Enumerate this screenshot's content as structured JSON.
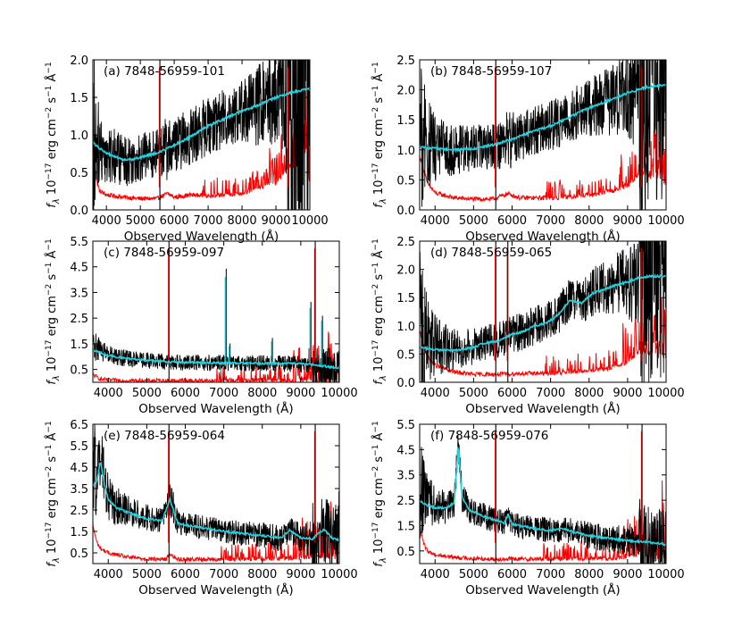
{
  "figure": {
    "legend": {
      "observed": "black",
      "model": "cyan",
      "error": "red"
    },
    "colors": {
      "observed": "#000000",
      "model": "#22d3df",
      "error": "#ff0000",
      "sky_line": "#000000"
    }
  },
  "chart_data": [
    {
      "type": "line",
      "panel": "a",
      "title": "(a) 7848-56959-101",
      "xlabel": "Observed Wavelength (Å)",
      "ylabel": "f_λ 10^-17 erg cm^-2 s^-1 Å^-1",
      "xlim": [
        3600,
        10000
      ],
      "ylim": [
        0.0,
        2.0
      ],
      "x_ticks": [
        4000,
        5000,
        6000,
        7000,
        8000,
        9000,
        10000
      ],
      "x_tick_labels": [
        "4000",
        "5000",
        "6000",
        "7000",
        "8000",
        "9000",
        "10000"
      ],
      "y_ticks": [
        0.0,
        0.5,
        1.0,
        1.5,
        2.0
      ],
      "y_tick_labels": [
        "0.0",
        "0.5",
        "1.0",
        "1.5",
        "2.0"
      ],
      "vlines": [
        5577,
        9375
      ],
      "series": [
        {
          "name": "model",
          "x": [
            3600,
            3800,
            4000,
            4300,
            4600,
            5000,
            5500,
            6000,
            6500,
            7000,
            7500,
            8000,
            8500,
            9000,
            9500,
            10000
          ],
          "values": [
            0.9,
            0.82,
            0.76,
            0.7,
            0.66,
            0.7,
            0.76,
            0.86,
            0.98,
            1.12,
            1.22,
            1.32,
            1.4,
            1.5,
            1.57,
            1.62
          ]
        },
        {
          "name": "error",
          "x": [
            3600,
            3700,
            3800,
            4000,
            4500,
            5000,
            5500,
            5800,
            6000,
            6500,
            7000,
            7500,
            8000,
            8500,
            9000,
            9300,
            9600,
            9900,
            10000
          ],
          "values": [
            0.9,
            0.4,
            0.25,
            0.2,
            0.17,
            0.15,
            0.15,
            0.22,
            0.17,
            0.2,
            0.19,
            0.2,
            0.22,
            0.3,
            0.35,
            0.55,
            0.6,
            0.8,
            0.3
          ]
        },
        {
          "name": "observed",
          "x": [
            3600,
            3800,
            4000,
            4300,
            4600,
            5000,
            5500,
            6000,
            6500,
            7000,
            7500,
            8000,
            8500,
            9000,
            9500,
            10000
          ],
          "values": [
            1.0,
            0.85,
            0.76,
            0.7,
            0.66,
            0.7,
            0.76,
            0.86,
            0.98,
            1.12,
            1.22,
            1.32,
            1.4,
            1.5,
            1.57,
            1.62
          ]
        }
      ]
    },
    {
      "type": "line",
      "panel": "b",
      "title": "(b) 7848-56959-107",
      "xlabel": "Observed Wavelength (Å)",
      "ylabel": "f_λ 10^-17 erg cm^-2 s^-1 Å^-1",
      "xlim": [
        3600,
        10000
      ],
      "ylim": [
        0.0,
        2.5
      ],
      "x_ticks": [
        4000,
        5000,
        6000,
        7000,
        8000,
        9000,
        10000
      ],
      "x_tick_labels": [
        "4000",
        "5000",
        "6000",
        "7000",
        "8000",
        "9000",
        "10000"
      ],
      "y_ticks": [
        0.0,
        0.5,
        1.0,
        1.5,
        2.0,
        2.5
      ],
      "y_tick_labels": [
        "0.0",
        "0.5",
        "1.0",
        "1.5",
        "2.0",
        "2.5"
      ],
      "vlines": [
        5577,
        9375
      ],
      "series": [
        {
          "name": "model",
          "x": [
            3600,
            4000,
            4500,
            5000,
            5500,
            6000,
            6500,
            7000,
            7500,
            8000,
            8500,
            9000,
            9500,
            10000
          ],
          "values": [
            1.05,
            1.02,
            1.0,
            1.02,
            1.08,
            1.18,
            1.3,
            1.4,
            1.55,
            1.7,
            1.82,
            1.95,
            2.05,
            2.08
          ]
        },
        {
          "name": "error",
          "x": [
            3600,
            3800,
            4000,
            4500,
            5000,
            5500,
            5900,
            6200,
            7000,
            7500,
            8000,
            8500,
            9000,
            9300,
            9600,
            10000
          ],
          "values": [
            0.9,
            0.45,
            0.28,
            0.2,
            0.18,
            0.18,
            0.27,
            0.2,
            0.2,
            0.22,
            0.25,
            0.3,
            0.4,
            0.6,
            0.55,
            0.45
          ]
        },
        {
          "name": "observed",
          "x": [
            3600,
            4000,
            4500,
            5000,
            5500,
            6000,
            6500,
            7000,
            7500,
            8000,
            8500,
            9000,
            9500,
            10000
          ],
          "values": [
            1.1,
            1.02,
            1.0,
            1.02,
            1.08,
            1.18,
            1.3,
            1.4,
            1.55,
            1.7,
            1.82,
            1.95,
            2.05,
            2.08
          ]
        }
      ]
    },
    {
      "type": "line",
      "panel": "c",
      "title": "(c) 7848-56959-097",
      "xlabel": "Observed Wavelength (Å)",
      "ylabel": "f_λ 10^-17 erg cm^-2 s^-1 Å^-1",
      "xlim": [
        3600,
        10000
      ],
      "ylim": [
        0.0,
        5.5
      ],
      "x_ticks": [
        4000,
        5000,
        6000,
        7000,
        8000,
        9000,
        10000
      ],
      "x_tick_labels": [
        "4000",
        "5000",
        "6000",
        "7000",
        "8000",
        "9000",
        "10000"
      ],
      "y_ticks": [
        0.5,
        1.5,
        2.5,
        3.5,
        4.5,
        5.5
      ],
      "y_tick_labels": [
        "0.5",
        "1.5",
        "2.5",
        "3.5",
        "4.5",
        "5.5"
      ],
      "vlines": [
        5577,
        9375
      ],
      "series": [
        {
          "name": "model",
          "x": [
            3600,
            4000,
            4500,
            5000,
            5500,
            6000,
            6500,
            7000,
            7500,
            8000,
            8500,
            9000,
            9500,
            10000
          ],
          "values": [
            1.25,
            1.05,
            0.92,
            0.85,
            0.8,
            0.78,
            0.76,
            0.75,
            0.75,
            0.74,
            0.73,
            0.72,
            0.65,
            0.55
          ]
        },
        {
          "name": "error",
          "x": [
            3600,
            3800,
            4000,
            5000,
            6000,
            7000,
            8000,
            9000,
            10000
          ],
          "values": [
            0.3,
            0.12,
            0.08,
            0.06,
            0.06,
            0.06,
            0.06,
            0.07,
            0.08
          ]
        },
        {
          "name": "observed",
          "x": [
            3600,
            4000,
            4500,
            5000,
            5500,
            6000,
            6500,
            7000,
            7500,
            8000,
            8500,
            9000,
            9500,
            10000
          ],
          "values": [
            1.4,
            1.08,
            0.92,
            0.85,
            0.8,
            0.78,
            0.76,
            0.75,
            0.75,
            0.74,
            0.73,
            0.72,
            0.65,
            0.5
          ]
        }
      ],
      "emission_lines": [
        {
          "x": 7040,
          "peak": 4.1
        },
        {
          "x": 7140,
          "peak": 1.4
        },
        {
          "x": 8240,
          "peak": 1.6
        },
        {
          "x": 9240,
          "peak": 2.9
        },
        {
          "x": 9540,
          "peak": 2.4
        }
      ]
    },
    {
      "type": "line",
      "panel": "d",
      "title": "(d) 7848-56959-065",
      "xlabel": "Observed Wavelength (Å)",
      "ylabel": "f_λ 10^-17 erg cm^-2 s^-1 Å^-1",
      "xlim": [
        3600,
        10000
      ],
      "ylim": [
        0.0,
        2.5
      ],
      "x_ticks": [
        4000,
        5000,
        6000,
        7000,
        8000,
        9000,
        10000
      ],
      "x_tick_labels": [
        "4000",
        "5000",
        "6000",
        "7000",
        "8000",
        "9000",
        "10000"
      ],
      "y_ticks": [
        0.0,
        0.5,
        1.0,
        1.5,
        2.0,
        2.5
      ],
      "y_tick_labels": [
        "0.0",
        "0.5",
        "1.0",
        "1.5",
        "2.0",
        "2.5"
      ],
      "vlines": [
        5577,
        5890,
        9375
      ],
      "series": [
        {
          "name": "model",
          "x": [
            3600,
            4000,
            4500,
            5000,
            5300,
            5600,
            6000,
            6300,
            6600,
            6900,
            7200,
            7500,
            7800,
            8100,
            8400,
            8700,
            9000,
            9300,
            9600,
            10000
          ],
          "values": [
            0.62,
            0.58,
            0.56,
            0.62,
            0.7,
            0.72,
            0.85,
            0.9,
            1.0,
            1.05,
            1.2,
            1.45,
            1.4,
            1.58,
            1.65,
            1.72,
            1.78,
            1.85,
            1.88,
            1.88
          ]
        },
        {
          "name": "error",
          "x": [
            3600,
            3800,
            4000,
            4500,
            5000,
            5500,
            6000,
            6500,
            7000,
            7500,
            8000,
            8500,
            9000,
            9300,
            9600,
            10000
          ],
          "values": [
            0.9,
            0.45,
            0.3,
            0.18,
            0.14,
            0.14,
            0.15,
            0.16,
            0.16,
            0.18,
            0.2,
            0.25,
            0.35,
            0.55,
            0.5,
            0.45
          ]
        },
        {
          "name": "observed",
          "x": [
            3600,
            4000,
            4500,
            5000,
            5300,
            5600,
            6000,
            6300,
            6600,
            6900,
            7200,
            7500,
            7800,
            8100,
            8400,
            8700,
            9000,
            9300,
            9600,
            10000
          ],
          "values": [
            0.8,
            0.62,
            0.58,
            0.64,
            0.7,
            0.72,
            0.85,
            0.92,
            1.0,
            1.08,
            1.22,
            1.45,
            1.42,
            1.6,
            1.68,
            1.75,
            1.8,
            1.85,
            1.9,
            1.9
          ]
        }
      ]
    },
    {
      "type": "line",
      "panel": "e",
      "title": "(e) 7848-56959-064",
      "xlabel": "Observed Wavelength (Å)",
      "ylabel": "f_λ 10^-17 erg cm^-2 s^-1 Å^-1",
      "xlim": [
        3600,
        10000
      ],
      "ylim": [
        0.0,
        6.5
      ],
      "x_ticks": [
        4000,
        5000,
        6000,
        7000,
        8000,
        9000,
        10000
      ],
      "x_tick_labels": [
        "4000",
        "5000",
        "6000",
        "7000",
        "8000",
        "9000",
        "10000"
      ],
      "y_ticks": [
        0.5,
        1.5,
        2.5,
        3.5,
        4.5,
        5.5,
        6.5
      ],
      "y_tick_labels": [
        "0.5",
        "1.5",
        "2.5",
        "3.5",
        "4.5",
        "5.5",
        "6.5"
      ],
      "vlines": [
        5577,
        9375
      ],
      "series": [
        {
          "name": "model",
          "x": [
            3600,
            3700,
            3800,
            3900,
            4000,
            4200,
            4500,
            5000,
            5400,
            5600,
            5800,
            6000,
            6500,
            7000,
            7500,
            8000,
            8500,
            8700,
            9000,
            9300,
            9600,
            9800,
            10000
          ],
          "values": [
            3.6,
            3.8,
            4.8,
            3.7,
            3.0,
            2.6,
            2.4,
            2.1,
            2.0,
            3.0,
            1.9,
            1.8,
            1.65,
            1.5,
            1.4,
            1.3,
            1.2,
            1.55,
            1.2,
            1.15,
            1.6,
            1.2,
            1.1
          ]
        },
        {
          "name": "error",
          "x": [
            3600,
            3700,
            3800,
            4000,
            4500,
            5000,
            5500,
            5600,
            5800,
            6000,
            7000,
            8000,
            9000,
            9300,
            9600,
            10000
          ],
          "values": [
            1.8,
            1.0,
            0.7,
            0.5,
            0.3,
            0.22,
            0.2,
            0.45,
            0.2,
            0.2,
            0.2,
            0.22,
            0.25,
            0.35,
            0.3,
            0.3
          ]
        },
        {
          "name": "observed",
          "x": [
            3600,
            3700,
            3800,
            3900,
            4000,
            4200,
            4500,
            5000,
            5400,
            5600,
            5800,
            6000,
            6500,
            7000,
            7500,
            8000,
            8500,
            8700,
            9000,
            9300,
            9600,
            9800,
            10000
          ],
          "values": [
            4.0,
            4.2,
            5.2,
            3.9,
            3.1,
            2.7,
            2.45,
            2.15,
            2.0,
            3.1,
            1.9,
            1.8,
            1.65,
            1.5,
            1.4,
            1.3,
            1.2,
            1.55,
            1.2,
            1.15,
            1.6,
            1.2,
            1.1
          ]
        }
      ]
    },
    {
      "type": "line",
      "panel": "f",
      "title": "(f) 7848-56959-076",
      "xlabel": "Observed Wavelength (Å)",
      "ylabel": "f_λ 10^-17 erg cm^-2 s^-1 Å^-1",
      "xlim": [
        3600,
        10000
      ],
      "ylim": [
        0.0,
        5.5
      ],
      "x_ticks": [
        4000,
        5000,
        6000,
        7000,
        8000,
        9000,
        10000
      ],
      "x_tick_labels": [
        "4000",
        "5000",
        "6000",
        "7000",
        "8000",
        "9000",
        "10000"
      ],
      "y_ticks": [
        0.5,
        1.5,
        2.5,
        3.5,
        4.5,
        5.5
      ],
      "y_tick_labels": [
        "0.5",
        "1.5",
        "2.5",
        "3.5",
        "4.5",
        "5.5"
      ],
      "vlines": [
        5577,
        9375
      ],
      "series": [
        {
          "name": "model",
          "x": [
            3600,
            3800,
            4000,
            4300,
            4500,
            4600,
            4700,
            4900,
            5200,
            5500,
            5800,
            5900,
            6000,
            6500,
            7000,
            7300,
            7600,
            8000,
            8500,
            9000,
            9500,
            10000
          ],
          "values": [
            2.5,
            2.3,
            2.2,
            2.2,
            2.4,
            4.7,
            2.6,
            2.1,
            1.9,
            1.75,
            1.6,
            1.95,
            1.55,
            1.4,
            1.3,
            1.4,
            1.25,
            1.1,
            1.0,
            0.9,
            0.85,
            0.75
          ]
        },
        {
          "name": "error",
          "x": [
            3600,
            3700,
            3800,
            4000,
            4500,
            5000,
            5500,
            6000,
            7000,
            8000,
            9000,
            9300,
            9600,
            10000
          ],
          "values": [
            1.5,
            0.8,
            0.5,
            0.35,
            0.25,
            0.2,
            0.18,
            0.18,
            0.18,
            0.2,
            0.22,
            0.4,
            0.25,
            0.25
          ]
        },
        {
          "name": "observed",
          "x": [
            3600,
            3800,
            4000,
            4300,
            4500,
            4600,
            4700,
            4900,
            5200,
            5500,
            5800,
            5900,
            6000,
            6500,
            7000,
            7300,
            7600,
            8000,
            8500,
            9000,
            9500,
            10000
          ],
          "values": [
            2.8,
            2.5,
            2.3,
            2.25,
            2.45,
            4.8,
            2.6,
            2.1,
            1.9,
            1.75,
            1.6,
            1.95,
            1.55,
            1.4,
            1.3,
            1.4,
            1.25,
            1.1,
            1.0,
            0.9,
            0.85,
            0.75
          ]
        }
      ]
    }
  ]
}
